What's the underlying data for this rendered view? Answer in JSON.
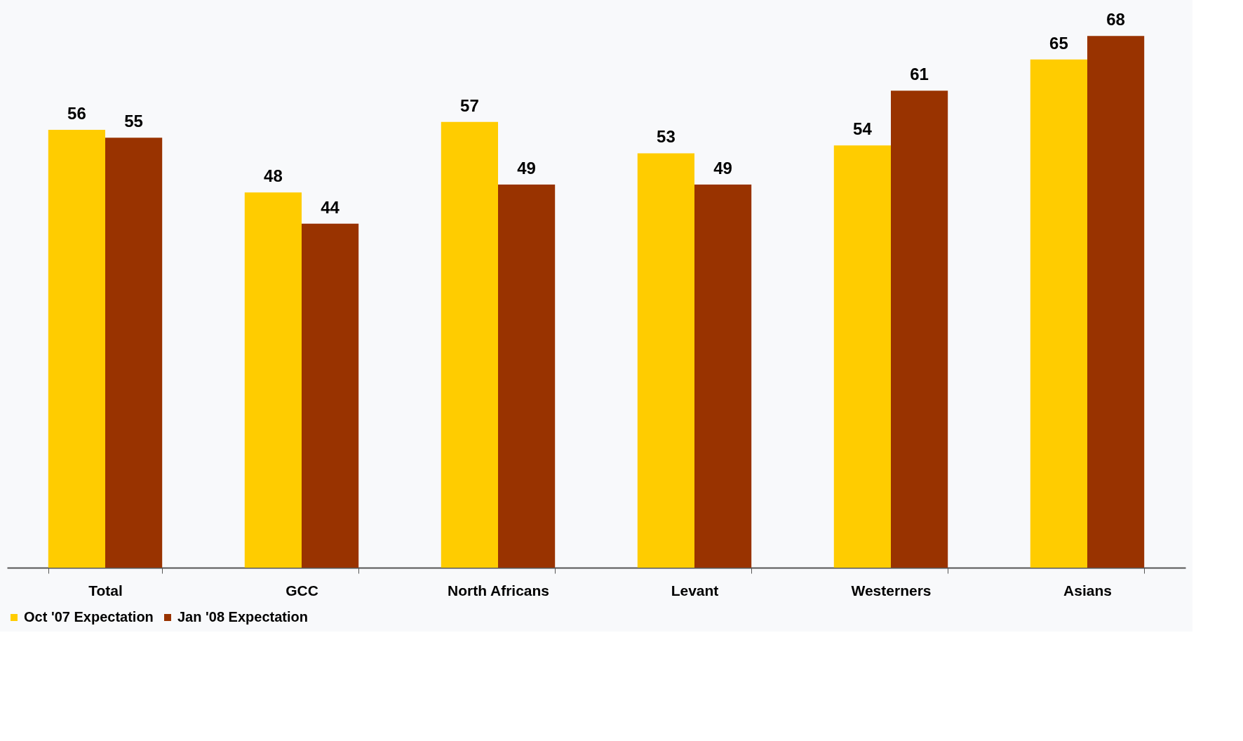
{
  "chart_data": {
    "type": "bar",
    "categories": [
      "Total",
      "GCC",
      "North Africans",
      "Levant",
      "Westerners",
      "Asians"
    ],
    "series": [
      {
        "name": "Oct '07 Expectation",
        "color": "#ffcc00",
        "values": [
          56,
          48,
          57,
          53,
          54,
          65
        ]
      },
      {
        "name": "Jan '08 Expectation",
        "color": "#993300",
        "values": [
          55,
          44,
          49,
          49,
          61,
          68
        ]
      }
    ],
    "data_labels": true,
    "legend": "bottom",
    "grid": false,
    "tick_labels": "x"
  }
}
